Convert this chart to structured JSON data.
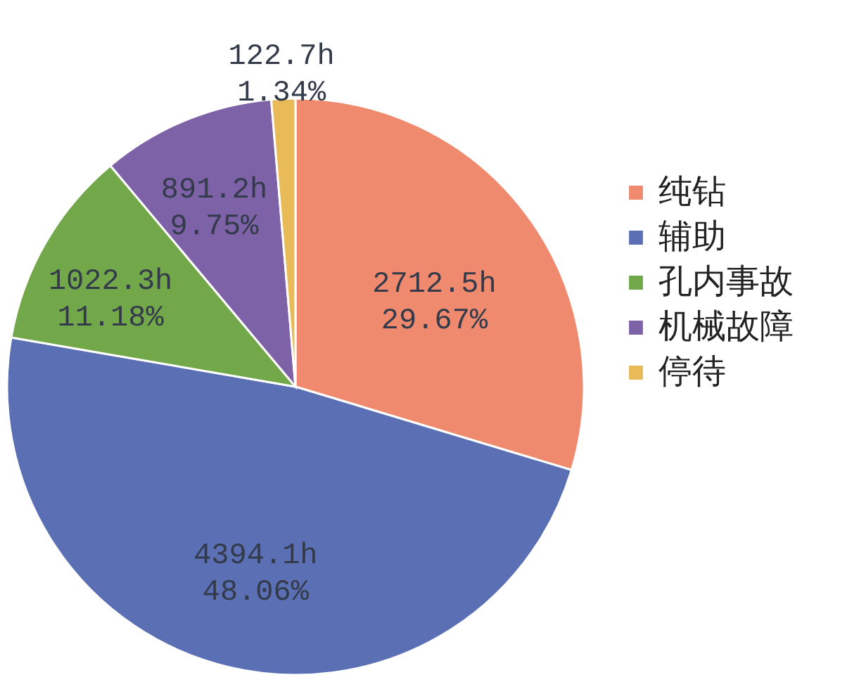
{
  "chart_data": {
    "type": "pie",
    "categories": [
      "纯钻",
      "辅助",
      "孔内事故",
      "机械故障",
      "停待"
    ],
    "values": [
      2712.5,
      4394.1,
      1022.3,
      891.2,
      122.7
    ],
    "colors": [
      "#ef8a6f",
      "#5a6fb4",
      "#72a84a",
      "#7d62a8",
      "#e8bb58"
    ],
    "value_labels": [
      "2712.5h\n29.67%",
      "4394.1h\n48.06%",
      "1022.3h\n11.18%",
      "891.2h\n9.75%",
      "122.7h\n1.34%"
    ],
    "legend": "right"
  }
}
